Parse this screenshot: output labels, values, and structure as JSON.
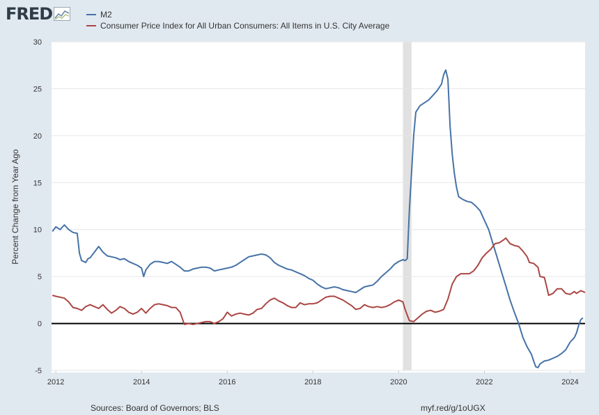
{
  "header": {
    "logo_text": "FRED",
    "logo_icon": "fred-chart-icon"
  },
  "legend": [
    {
      "label": "M2",
      "color": "#4572a7"
    },
    {
      "label": "Consumer Price Index for All Urban Consumers: All Items in U.S. City Average",
      "color": "#aa4643"
    }
  ],
  "footer": {
    "sources": "Sources: Board of Governors; BLS",
    "link": "myf.red/g/1oUGX"
  },
  "colors": {
    "background": "#e1e9f0",
    "plot_background": "#ffffff",
    "recession_band": "#e1e1e1",
    "zero_line": "#000000"
  },
  "chart_data": {
    "type": "line",
    "ylabel": "Percent Change from Year Ago",
    "xlabel": "",
    "xlim": [
      2011.9,
      2024.35
    ],
    "ylim": [
      -5,
      30
    ],
    "x_ticks": [
      2012,
      2014,
      2016,
      2018,
      2020,
      2022,
      2024
    ],
    "y_ticks": [
      -5,
      0,
      5,
      10,
      15,
      20,
      25,
      30
    ],
    "grid": "horizontal",
    "zero_line": true,
    "recession_shading": [
      [
        2020.1,
        2020.3
      ]
    ],
    "series": [
      {
        "name": "M2",
        "color": "#4572a7",
        "points": [
          [
            2011.92,
            9.8
          ],
          [
            2012.0,
            10.3
          ],
          [
            2012.1,
            10.0
          ],
          [
            2012.2,
            10.5
          ],
          [
            2012.3,
            10.0
          ],
          [
            2012.4,
            9.7
          ],
          [
            2012.5,
            9.6
          ],
          [
            2012.55,
            7.5
          ],
          [
            2012.6,
            6.7
          ],
          [
            2012.7,
            6.5
          ],
          [
            2012.75,
            6.9
          ],
          [
            2012.8,
            7.0
          ],
          [
            2012.9,
            7.6
          ],
          [
            2013.0,
            8.2
          ],
          [
            2013.1,
            7.6
          ],
          [
            2013.2,
            7.2
          ],
          [
            2013.3,
            7.1
          ],
          [
            2013.4,
            7.0
          ],
          [
            2013.5,
            6.8
          ],
          [
            2013.6,
            6.9
          ],
          [
            2013.7,
            6.6
          ],
          [
            2013.8,
            6.4
          ],
          [
            2013.9,
            6.2
          ],
          [
            2014.0,
            5.9
          ],
          [
            2014.05,
            5.0
          ],
          [
            2014.1,
            5.7
          ],
          [
            2014.2,
            6.3
          ],
          [
            2014.3,
            6.6
          ],
          [
            2014.4,
            6.6
          ],
          [
            2014.5,
            6.5
          ],
          [
            2014.6,
            6.4
          ],
          [
            2014.7,
            6.6
          ],
          [
            2014.8,
            6.3
          ],
          [
            2014.9,
            6.0
          ],
          [
            2015.0,
            5.6
          ],
          [
            2015.1,
            5.6
          ],
          [
            2015.2,
            5.8
          ],
          [
            2015.3,
            5.9
          ],
          [
            2015.4,
            6.0
          ],
          [
            2015.5,
            6.0
          ],
          [
            2015.6,
            5.9
          ],
          [
            2015.7,
            5.6
          ],
          [
            2015.8,
            5.7
          ],
          [
            2015.9,
            5.8
          ],
          [
            2016.0,
            5.9
          ],
          [
            2016.1,
            6.0
          ],
          [
            2016.2,
            6.2
          ],
          [
            2016.3,
            6.5
          ],
          [
            2016.4,
            6.8
          ],
          [
            2016.5,
            7.1
          ],
          [
            2016.6,
            7.2
          ],
          [
            2016.7,
            7.3
          ],
          [
            2016.8,
            7.4
          ],
          [
            2016.9,
            7.3
          ],
          [
            2017.0,
            7.0
          ],
          [
            2017.1,
            6.5
          ],
          [
            2017.2,
            6.2
          ],
          [
            2017.3,
            6.0
          ],
          [
            2017.4,
            5.8
          ],
          [
            2017.5,
            5.7
          ],
          [
            2017.6,
            5.5
          ],
          [
            2017.7,
            5.3
          ],
          [
            2017.8,
            5.1
          ],
          [
            2017.9,
            4.8
          ],
          [
            2018.0,
            4.6
          ],
          [
            2018.1,
            4.2
          ],
          [
            2018.2,
            3.9
          ],
          [
            2018.3,
            3.7
          ],
          [
            2018.4,
            3.8
          ],
          [
            2018.5,
            3.9
          ],
          [
            2018.6,
            3.8
          ],
          [
            2018.7,
            3.6
          ],
          [
            2018.8,
            3.5
          ],
          [
            2018.9,
            3.4
          ],
          [
            2019.0,
            3.3
          ],
          [
            2019.1,
            3.6
          ],
          [
            2019.2,
            3.9
          ],
          [
            2019.3,
            4.0
          ],
          [
            2019.4,
            4.1
          ],
          [
            2019.5,
            4.5
          ],
          [
            2019.6,
            5.0
          ],
          [
            2019.7,
            5.4
          ],
          [
            2019.8,
            5.8
          ],
          [
            2019.9,
            6.3
          ],
          [
            2020.0,
            6.6
          ],
          [
            2020.1,
            6.8
          ],
          [
            2020.15,
            6.7
          ],
          [
            2020.2,
            6.9
          ],
          [
            2020.25,
            12.0
          ],
          [
            2020.3,
            16.0
          ],
          [
            2020.35,
            20.0
          ],
          [
            2020.4,
            22.5
          ],
          [
            2020.5,
            23.2
          ],
          [
            2020.6,
            23.5
          ],
          [
            2020.7,
            23.8
          ],
          [
            2020.8,
            24.3
          ],
          [
            2020.9,
            24.8
          ],
          [
            2021.0,
            25.5
          ],
          [
            2021.05,
            26.5
          ],
          [
            2021.1,
            27.0
          ],
          [
            2021.15,
            26.0
          ],
          [
            2021.2,
            21.0
          ],
          [
            2021.25,
            18.0
          ],
          [
            2021.3,
            16.0
          ],
          [
            2021.35,
            14.5
          ],
          [
            2021.4,
            13.5
          ],
          [
            2021.5,
            13.2
          ],
          [
            2021.6,
            13.0
          ],
          [
            2021.7,
            12.9
          ],
          [
            2021.8,
            12.5
          ],
          [
            2021.9,
            12.0
          ],
          [
            2022.0,
            11.0
          ],
          [
            2022.1,
            10.0
          ],
          [
            2022.2,
            8.5
          ],
          [
            2022.3,
            7.0
          ],
          [
            2022.4,
            5.5
          ],
          [
            2022.5,
            4.0
          ],
          [
            2022.6,
            2.5
          ],
          [
            2022.7,
            1.2
          ],
          [
            2022.8,
            0.0
          ],
          [
            2022.9,
            -1.5
          ],
          [
            2023.0,
            -2.5
          ],
          [
            2023.1,
            -3.3
          ],
          [
            2023.15,
            -4.0
          ],
          [
            2023.2,
            -4.6
          ],
          [
            2023.25,
            -4.7
          ],
          [
            2023.3,
            -4.3
          ],
          [
            2023.4,
            -4.0
          ],
          [
            2023.5,
            -3.9
          ],
          [
            2023.6,
            -3.7
          ],
          [
            2023.7,
            -3.5
          ],
          [
            2023.8,
            -3.2
          ],
          [
            2023.9,
            -2.8
          ],
          [
            2024.0,
            -2.0
          ],
          [
            2024.1,
            -1.5
          ],
          [
            2024.15,
            -1.0
          ],
          [
            2024.2,
            -0.2
          ],
          [
            2024.25,
            0.4
          ],
          [
            2024.3,
            0.6
          ]
        ]
      },
      {
        "name": "Consumer Price Index for All Urban Consumers: All Items in U.S. City Average",
        "color": "#aa4643",
        "points": [
          [
            2011.92,
            3.0
          ],
          [
            2012.0,
            2.9
          ],
          [
            2012.2,
            2.7
          ],
          [
            2012.3,
            2.3
          ],
          [
            2012.4,
            1.7
          ],
          [
            2012.5,
            1.6
          ],
          [
            2012.6,
            1.4
          ],
          [
            2012.7,
            1.8
          ],
          [
            2012.8,
            2.0
          ],
          [
            2012.9,
            1.8
          ],
          [
            2013.0,
            1.6
          ],
          [
            2013.1,
            2.0
          ],
          [
            2013.2,
            1.5
          ],
          [
            2013.3,
            1.1
          ],
          [
            2013.4,
            1.4
          ],
          [
            2013.5,
            1.8
          ],
          [
            2013.6,
            1.6
          ],
          [
            2013.7,
            1.2
          ],
          [
            2013.8,
            1.0
          ],
          [
            2013.9,
            1.2
          ],
          [
            2014.0,
            1.6
          ],
          [
            2014.1,
            1.1
          ],
          [
            2014.2,
            1.6
          ],
          [
            2014.3,
            2.0
          ],
          [
            2014.4,
            2.1
          ],
          [
            2014.5,
            2.0
          ],
          [
            2014.6,
            1.9
          ],
          [
            2014.7,
            1.7
          ],
          [
            2014.8,
            1.7
          ],
          [
            2014.9,
            1.2
          ],
          [
            2015.0,
            -0.1
          ],
          [
            2015.1,
            0.0
          ],
          [
            2015.2,
            -0.1
          ],
          [
            2015.3,
            0.0
          ],
          [
            2015.4,
            0.1
          ],
          [
            2015.5,
            0.2
          ],
          [
            2015.6,
            0.2
          ],
          [
            2015.7,
            0.0
          ],
          [
            2015.8,
            0.2
          ],
          [
            2015.9,
            0.5
          ],
          [
            2016.0,
            1.2
          ],
          [
            2016.1,
            0.8
          ],
          [
            2016.2,
            1.0
          ],
          [
            2016.3,
            1.1
          ],
          [
            2016.4,
            1.0
          ],
          [
            2016.5,
            0.9
          ],
          [
            2016.6,
            1.1
          ],
          [
            2016.7,
            1.5
          ],
          [
            2016.8,
            1.6
          ],
          [
            2016.9,
            2.1
          ],
          [
            2017.0,
            2.5
          ],
          [
            2017.1,
            2.7
          ],
          [
            2017.2,
            2.4
          ],
          [
            2017.3,
            2.2
          ],
          [
            2017.4,
            1.9
          ],
          [
            2017.5,
            1.7
          ],
          [
            2017.6,
            1.7
          ],
          [
            2017.7,
            2.2
          ],
          [
            2017.8,
            2.0
          ],
          [
            2017.9,
            2.1
          ],
          [
            2018.0,
            2.1
          ],
          [
            2018.1,
            2.2
          ],
          [
            2018.2,
            2.5
          ],
          [
            2018.3,
            2.8
          ],
          [
            2018.4,
            2.9
          ],
          [
            2018.5,
            2.9
          ],
          [
            2018.6,
            2.7
          ],
          [
            2018.7,
            2.5
          ],
          [
            2018.8,
            2.2
          ],
          [
            2018.9,
            1.9
          ],
          [
            2019.0,
            1.5
          ],
          [
            2019.1,
            1.6
          ],
          [
            2019.2,
            2.0
          ],
          [
            2019.3,
            1.8
          ],
          [
            2019.4,
            1.7
          ],
          [
            2019.5,
            1.8
          ],
          [
            2019.6,
            1.7
          ],
          [
            2019.7,
            1.8
          ],
          [
            2019.8,
            2.0
          ],
          [
            2019.9,
            2.3
          ],
          [
            2020.0,
            2.5
          ],
          [
            2020.1,
            2.3
          ],
          [
            2020.15,
            1.5
          ],
          [
            2020.25,
            0.3
          ],
          [
            2020.35,
            0.2
          ],
          [
            2020.45,
            0.6
          ],
          [
            2020.55,
            1.0
          ],
          [
            2020.65,
            1.3
          ],
          [
            2020.75,
            1.4
          ],
          [
            2020.85,
            1.2
          ],
          [
            2020.95,
            1.3
          ],
          [
            2021.05,
            1.5
          ],
          [
            2021.15,
            2.6
          ],
          [
            2021.25,
            4.2
          ],
          [
            2021.35,
            5.0
          ],
          [
            2021.45,
            5.3
          ],
          [
            2021.55,
            5.3
          ],
          [
            2021.65,
            5.3
          ],
          [
            2021.75,
            5.6
          ],
          [
            2021.85,
            6.2
          ],
          [
            2021.95,
            7.0
          ],
          [
            2022.05,
            7.5
          ],
          [
            2022.15,
            7.9
          ],
          [
            2022.25,
            8.5
          ],
          [
            2022.35,
            8.6
          ],
          [
            2022.45,
            8.9
          ],
          [
            2022.5,
            9.1
          ],
          [
            2022.6,
            8.5
          ],
          [
            2022.7,
            8.3
          ],
          [
            2022.8,
            8.2
          ],
          [
            2022.9,
            7.7
          ],
          [
            2023.0,
            7.1
          ],
          [
            2023.05,
            6.5
          ],
          [
            2023.15,
            6.4
          ],
          [
            2023.25,
            6.0
          ],
          [
            2023.3,
            5.0
          ],
          [
            2023.4,
            4.9
          ],
          [
            2023.45,
            4.0
          ],
          [
            2023.5,
            3.0
          ],
          [
            2023.6,
            3.2
          ],
          [
            2023.7,
            3.7
          ],
          [
            2023.8,
            3.7
          ],
          [
            2023.9,
            3.2
          ],
          [
            2024.0,
            3.1
          ],
          [
            2024.1,
            3.4
          ],
          [
            2024.15,
            3.2
          ],
          [
            2024.25,
            3.5
          ],
          [
            2024.3,
            3.4
          ],
          [
            2024.35,
            3.3
          ]
        ]
      }
    ]
  }
}
